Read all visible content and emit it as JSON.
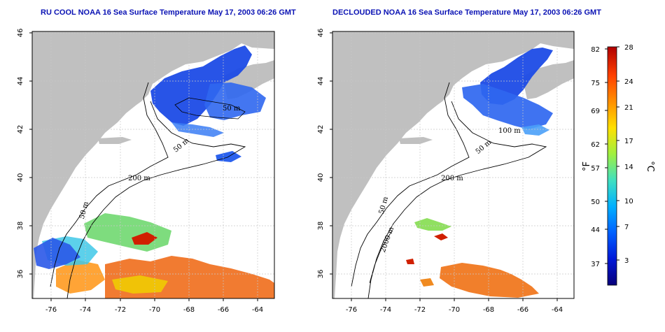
{
  "panels": [
    {
      "title": "RU COOL NOAA 16 Sea Surface Temperature May 17, 2003 06:26 GMT",
      "x_ticks": [
        "-76",
        "-74",
        "-72",
        "-70",
        "-68",
        "-66",
        "-64"
      ],
      "y_ticks": [
        "46",
        "44",
        "42",
        "40",
        "38",
        "36"
      ],
      "contour_labels": [
        "50 m",
        "200 m",
        "50 m",
        "50 m"
      ]
    },
    {
      "title": "DECLOUDED NOAA 16 Sea Surface Temperature May 17, 2003 06:26 GMT",
      "x_ticks": [
        "-76",
        "-74",
        "-72",
        "-70",
        "-68",
        "-66",
        "-64"
      ],
      "y_ticks": [
        "46",
        "44",
        "42",
        "40",
        "38",
        "36"
      ],
      "contour_labels": [
        "200 m",
        "100 m",
        "50 m",
        "50 m",
        "2000 m"
      ]
    }
  ],
  "colorbar": {
    "fahrenheit_ticks": [
      "82",
      "75",
      "69",
      "62",
      "57",
      "50",
      "44",
      "37"
    ],
    "celsius_ticks": [
      "28",
      "24",
      "21",
      "17",
      "14",
      "10",
      "7",
      "3"
    ],
    "unit_f": "°F",
    "unit_c": "°C",
    "range_c": [
      0,
      28
    ],
    "colors": [
      "#08007a",
      "#0018d8",
      "#0060ff",
      "#00b0ff",
      "#40e0c0",
      "#a0f040",
      "#ffe000",
      "#ff9000",
      "#ff4000",
      "#b00000"
    ]
  },
  "map": {
    "land_color": "#c0c0c0",
    "ocean_color": "#ffffff",
    "lon_range": [
      -77,
      -63
    ],
    "lat_range": [
      35,
      46
    ]
  }
}
